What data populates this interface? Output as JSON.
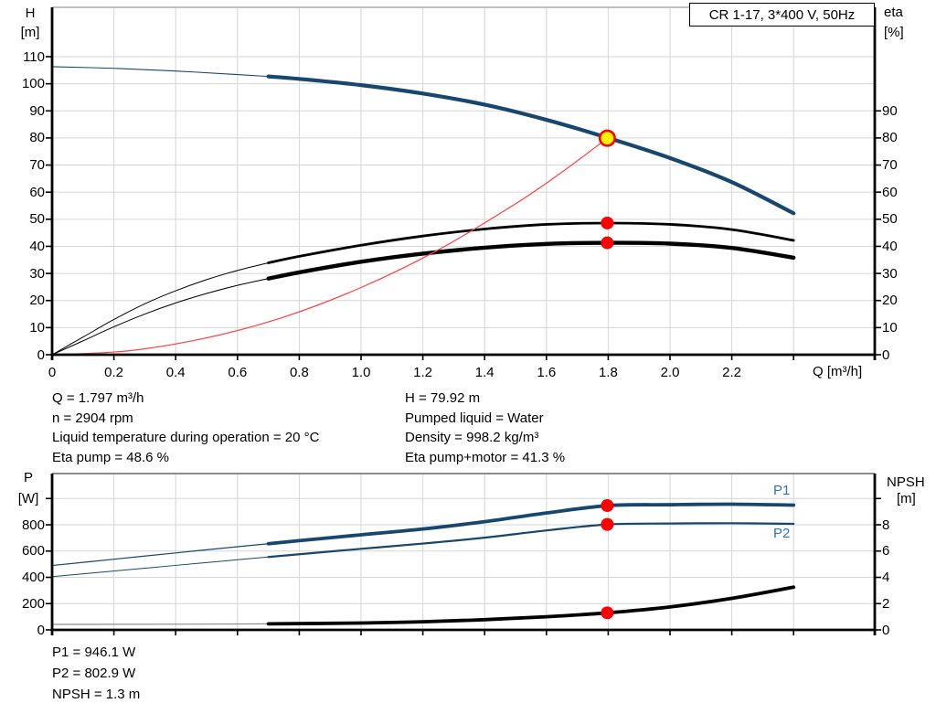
{
  "legend": {
    "label": "CR 1-17, 3*400 V, 50Hz"
  },
  "info_top_left": [
    "Q = 1.797 m³/h",
    "n = 2904 rpm",
    "Liquid temperature during operation = 20 °C",
    "Eta pump = 48.6 %"
  ],
  "info_top_right": [
    "H = 79.92 m",
    "Pumped liquid = Water",
    "Density = 998.2 kg/m³",
    "Eta pump+motor = 41.3 %"
  ],
  "info_bottom": [
    "P1 = 946.1 W",
    "P2 = 802.9 W",
    "NPSH = 1.3 m"
  ],
  "colors": {
    "curve_navy": "#17466F",
    "curve_black": "#000000",
    "system_red": "#FF4040",
    "npsh_thin_gray": "#8C8C8C",
    "marker_red": "#FF0000",
    "duty_yellow": "#FFF200",
    "grid_gray": "#D6D6D6",
    "label_blue": "#2E74B5"
  },
  "chart_data": [
    {
      "type": "line",
      "title": "",
      "x_axis": {
        "label": "Q [m³/h]",
        "tick_values": [
          0,
          0.2,
          0.4,
          0.6,
          0.8,
          1.0,
          1.2,
          1.4,
          1.6,
          1.8,
          2.0,
          2.2,
          2.4
        ],
        "tick_labels": [
          "0",
          "0.2",
          "0.4",
          "0.6",
          "0.8",
          "1.0",
          "1.2",
          "1.4",
          "1.6",
          "1.8",
          "2.0",
          "2.2",
          ""
        ],
        "range": [
          0,
          2.66
        ]
      },
      "y_left": {
        "key": "left",
        "title_lines": [
          "H",
          "[m]"
        ],
        "tick_values": [
          0,
          10,
          20,
          30,
          40,
          50,
          60,
          70,
          80,
          90,
          100,
          110
        ],
        "tick_labels": [
          "0",
          "10",
          "20",
          "30",
          "40",
          "50",
          "60",
          "70",
          "80",
          "90",
          "100",
          "110"
        ],
        "range": [
          0,
          128.2
        ]
      },
      "y_right": {
        "key": "right",
        "title_lines": [
          "eta",
          "[%]"
        ],
        "tick_values": [
          0,
          10,
          20,
          30,
          40,
          50,
          60,
          70,
          80,
          90
        ],
        "tick_labels": [
          "0",
          "10",
          "20",
          "30",
          "40",
          "50",
          "60",
          "70",
          "80",
          "90"
        ],
        "range": [
          0,
          128.2
        ]
      },
      "series": [
        {
          "name": "head-curve",
          "axis": "left",
          "color": "#17466F",
          "width_thin": 1.1,
          "width_thick": 4.2,
          "split": 0.7,
          "points": [
            [
              0,
              106.3
            ],
            [
              0.2,
              105.7
            ],
            [
              0.4,
              104.7
            ],
            [
              0.6,
              103.4
            ],
            [
              0.7,
              102.7
            ],
            [
              0.8,
              101.8
            ],
            [
              1.0,
              99.5
            ],
            [
              1.2,
              96.4
            ],
            [
              1.4,
              92.3
            ],
            [
              1.6,
              86.7
            ],
            [
              1.8,
              80.0
            ],
            [
              2.0,
              72.6
            ],
            [
              2.2,
              63.7
            ],
            [
              2.4,
              52.2
            ]
          ]
        },
        {
          "name": "eta-pump-curve",
          "axis": "right",
          "color": "#000000",
          "width_thin": 1.0,
          "width_thick": 2.8,
          "split": 0.7,
          "points": [
            [
              0,
              0
            ],
            [
              0.1,
              6.5
            ],
            [
              0.2,
              13.0
            ],
            [
              0.3,
              18.8
            ],
            [
              0.4,
              23.6
            ],
            [
              0.5,
              27.7
            ],
            [
              0.6,
              31.1
            ],
            [
              0.7,
              33.9
            ],
            [
              0.8,
              36.3
            ],
            [
              1.0,
              40.4
            ],
            [
              1.2,
              43.8
            ],
            [
              1.4,
              46.4
            ],
            [
              1.6,
              48.1
            ],
            [
              1.8,
              48.6
            ],
            [
              2.0,
              48.1
            ],
            [
              2.2,
              46.2
            ],
            [
              2.4,
              42.2
            ]
          ]
        },
        {
          "name": "eta-pump-motor-curve",
          "axis": "right",
          "color": "#000000",
          "width_thin": 1.0,
          "width_thick": 4.4,
          "split": 0.7,
          "points": [
            [
              0,
              0
            ],
            [
              0.1,
              5.1
            ],
            [
              0.2,
              10.3
            ],
            [
              0.3,
              15.0
            ],
            [
              0.4,
              19.1
            ],
            [
              0.5,
              22.6
            ],
            [
              0.6,
              25.6
            ],
            [
              0.7,
              28.1
            ],
            [
              0.8,
              30.4
            ],
            [
              1.0,
              34.3
            ],
            [
              1.2,
              37.3
            ],
            [
              1.4,
              39.5
            ],
            [
              1.6,
              40.9
            ],
            [
              1.8,
              41.3
            ],
            [
              2.0,
              41.0
            ],
            [
              2.2,
              39.4
            ],
            [
              2.4,
              35.8
            ]
          ]
        },
        {
          "name": "system-curve",
          "axis": "left",
          "color": "#FF4040",
          "width_thin": 1.2,
          "width_thick": 1.2,
          "split": null,
          "points": [
            [
              0,
              0
            ],
            [
              0.25,
              1.5
            ],
            [
              0.5,
              6.2
            ],
            [
              0.75,
              13.9
            ],
            [
              1.0,
              24.8
            ],
            [
              1.25,
              38.7
            ],
            [
              1.5,
              55.7
            ],
            [
              1.65,
              67.4
            ],
            [
              1.797,
              79.9
            ]
          ]
        }
      ],
      "markers": [
        {
          "name": "duty-point",
          "axis": "left",
          "q": 1.797,
          "v": 79.92,
          "kind": "duty"
        },
        {
          "name": "eta-pump-point",
          "axis": "right",
          "q": 1.797,
          "v": 48.6,
          "kind": "red"
        },
        {
          "name": "eta-pump-motor-point",
          "axis": "right",
          "q": 1.797,
          "v": 41.3,
          "kind": "red"
        }
      ]
    },
    {
      "type": "line",
      "title": "",
      "x_axis": {
        "label": "",
        "tick_values": [
          0,
          0.2,
          0.4,
          0.6,
          0.8,
          1.0,
          1.2,
          1.4,
          1.6,
          1.8,
          2.0,
          2.2,
          2.4
        ],
        "tick_labels": [
          "",
          "",
          "",
          "",
          "",
          "",
          "",
          "",
          "",
          "",
          "",
          "",
          ""
        ],
        "range": [
          0,
          2.66
        ]
      },
      "y_left": {
        "key": "W",
        "title_lines": [
          "P",
          "[W]"
        ],
        "tick_values": [
          0,
          200,
          400,
          600,
          800,
          1000
        ],
        "tick_labels": [
          "0",
          "200",
          "400",
          "600",
          "800",
          ""
        ],
        "range": [
          0,
          1190
        ]
      },
      "y_right": {
        "key": "m",
        "title_lines": [
          "NPSH",
          "[m]"
        ],
        "tick_values": [
          0,
          2,
          4,
          6,
          8,
          10
        ],
        "tick_labels": [
          "0",
          "2",
          "4",
          "6",
          "8",
          ""
        ],
        "range": [
          0,
          11.9
        ]
      },
      "curve_labels": {
        "p1": "P1",
        "p2": "P2"
      },
      "series": [
        {
          "name": "p1-curve",
          "axis": "W",
          "color": "#17466F",
          "width_thin": 1.2,
          "width_thick": 3.8,
          "split": 0.7,
          "points": [
            [
              0,
              490
            ],
            [
              0.2,
              538
            ],
            [
              0.4,
              586
            ],
            [
              0.6,
              633
            ],
            [
              0.7,
              656
            ],
            [
              0.8,
              679
            ],
            [
              1.0,
              724
            ],
            [
              1.2,
              768
            ],
            [
              1.4,
              824
            ],
            [
              1.6,
              890
            ],
            [
              1.8,
              946
            ],
            [
              2.0,
              953
            ],
            [
              2.2,
              957
            ],
            [
              2.4,
              950
            ]
          ]
        },
        {
          "name": "p2-curve",
          "axis": "W",
          "color": "#17466F",
          "width_thin": 1.0,
          "width_thick": 2.2,
          "split": 0.7,
          "points": [
            [
              0,
              405
            ],
            [
              0.2,
              448
            ],
            [
              0.4,
              491
            ],
            [
              0.6,
              534
            ],
            [
              0.7,
              555
            ],
            [
              0.8,
              576
            ],
            [
              1.0,
              617
            ],
            [
              1.2,
              657
            ],
            [
              1.4,
              702
            ],
            [
              1.6,
              757
            ],
            [
              1.8,
              803
            ],
            [
              2.0,
              810
            ],
            [
              2.2,
              812
            ],
            [
              2.4,
              807
            ]
          ]
        },
        {
          "name": "npsh-curve-thin",
          "axis": "m",
          "color": "#8C8C8C",
          "width_thin": 1.2,
          "width_thick": 1.2,
          "split": null,
          "points": [
            [
              0,
              0.42
            ],
            [
              0.35,
              0.43
            ],
            [
              0.7,
              0.46
            ]
          ]
        },
        {
          "name": "npsh-curve",
          "axis": "m",
          "color": "#000000",
          "width_thin": 3.8,
          "width_thick": 3.8,
          "split": null,
          "points": [
            [
              0.7,
              0.46
            ],
            [
              1.0,
              0.52
            ],
            [
              1.2,
              0.62
            ],
            [
              1.4,
              0.78
            ],
            [
              1.6,
              1.0
            ],
            [
              1.8,
              1.3
            ],
            [
              2.0,
              1.75
            ],
            [
              2.2,
              2.4
            ],
            [
              2.4,
              3.25
            ]
          ]
        }
      ],
      "markers": [
        {
          "name": "p1-point",
          "axis": "W",
          "q": 1.797,
          "v": 946.1,
          "kind": "red"
        },
        {
          "name": "p2-point",
          "axis": "W",
          "q": 1.797,
          "v": 802.9,
          "kind": "red"
        },
        {
          "name": "npsh-point",
          "axis": "m",
          "q": 1.797,
          "v": 1.3,
          "kind": "red"
        }
      ]
    }
  ]
}
